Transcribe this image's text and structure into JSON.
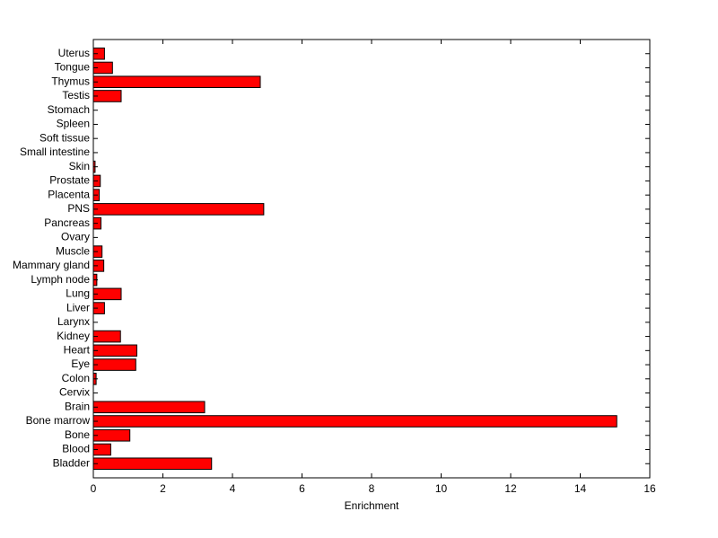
{
  "chart_data": {
    "type": "bar",
    "orientation": "horizontal",
    "title": "",
    "xlabel": "Enrichment",
    "ylabel": "",
    "xlim": [
      0,
      16
    ],
    "x_ticks": [
      0,
      2,
      4,
      6,
      8,
      10,
      12,
      14,
      16
    ],
    "x_tick_labels": [
      "0",
      "2",
      "4",
      "6",
      "8",
      "10",
      "12",
      "14",
      "16"
    ],
    "grid": false,
    "bar_color": "#ff0000",
    "bar_edge_color": "#000000",
    "categories": [
      "Bladder",
      "Blood",
      "Bone",
      "Bone marrow",
      "Brain",
      "Cervix",
      "Colon",
      "Eye",
      "Heart",
      "Kidney",
      "Larynx",
      "Liver",
      "Lung",
      "Lymph node",
      "Mammary gland",
      "Muscle",
      "Ovary",
      "Pancreas",
      "PNS",
      "Placenta",
      "Prostate",
      "Skin",
      "Small intestine",
      "Soft tissue",
      "Spleen",
      "Stomach",
      "Testis",
      "Thymus",
      "Tongue",
      "Uterus"
    ],
    "values": [
      3.4,
      0.5,
      1.05,
      15.05,
      3.2,
      0,
      0.08,
      1.22,
      1.25,
      0.78,
      0,
      0.32,
      0.8,
      0.1,
      0.3,
      0.25,
      0,
      0.22,
      4.9,
      0.17,
      0.2,
      0.05,
      0,
      0,
      0,
      0,
      0.8,
      4.8,
      0.55,
      0.32
    ]
  }
}
